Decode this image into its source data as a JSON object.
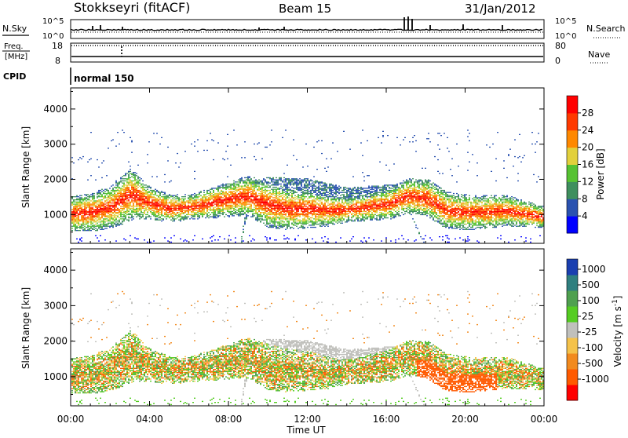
{
  "header": {
    "station": "Stokkseyri (fitACF)",
    "beam": "Beam 15",
    "date": "31/Jan/2012"
  },
  "time_axis": {
    "label": "Time UT",
    "ticks": [
      "00:00",
      "04:00",
      "08:00",
      "12:00",
      "16:00",
      "20:00",
      "00:00"
    ]
  },
  "top_panels": {
    "nsky": {
      "label": "N.Sky",
      "left_ticks": [
        "10^5",
        "10^0"
      ],
      "right_ticks": [
        "10^5",
        "10^0"
      ],
      "right_label": "N.Search"
    },
    "freq": {
      "label_line1": "Freq.",
      "label_line2": "[MHz]",
      "left_ticks": [
        "18",
        "8"
      ],
      "right_ticks": [
        "80",
        "0"
      ],
      "right_label": "Nave"
    },
    "cpid": {
      "label": "CPID",
      "value": "normal 150"
    }
  },
  "chart_data": [
    {
      "type": "heatmap",
      "title": "",
      "xlabel": "Time UT",
      "ylabel": "Slant Range [km]",
      "xlim": [
        "00:00",
        "24:00"
      ],
      "ylim": [
        180,
        4600
      ],
      "yticks": [
        1000,
        2000,
        3000,
        4000
      ],
      "colorbar": {
        "label": "Power [dB]",
        "ticks": [
          4,
          8,
          12,
          16,
          20,
          24,
          28
        ],
        "colors": [
          "#0000ff",
          "#2a52b0",
          "#3f8f5e",
          "#56c232",
          "#e2d03c",
          "#ff8800",
          "#ff3a00",
          "#ff0000"
        ]
      }
    },
    {
      "type": "heatmap",
      "title": "",
      "xlabel": "Time UT",
      "ylabel": "Slant Range [km]",
      "xlim": [
        "00:00",
        "24:00"
      ],
      "ylim": [
        180,
        4600
      ],
      "yticks": [
        1000,
        2000,
        3000,
        4000
      ],
      "colorbar": {
        "label": "Velocity [m s^-1]",
        "ticks": [
          1000,
          500,
          100,
          25,
          -25,
          -100,
          -500,
          -1000
        ],
        "colors": [
          "#1a3fb0",
          "#2f7f7f",
          "#4fa04f",
          "#55cc22",
          "#c0c0bc",
          "#f5c24a",
          "#f28a1e",
          "#ff5a00",
          "#ff0000"
        ]
      }
    }
  ]
}
